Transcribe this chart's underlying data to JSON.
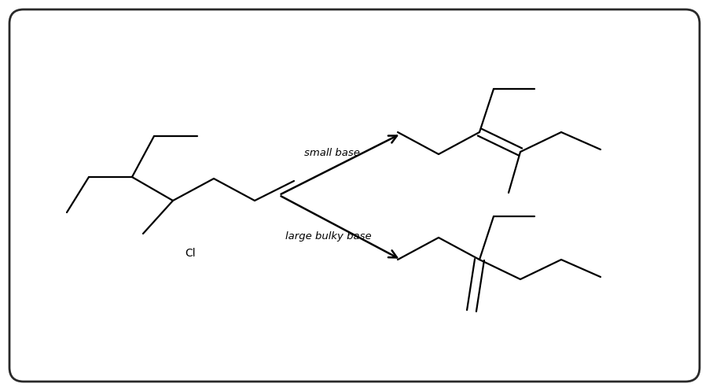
{
  "bg_color": "#ffffff",
  "line_color": "#000000",
  "line_width": 1.6,
  "arrow_color": "#000000",
  "text_color": "#000000",
  "small_base_label": "small base",
  "large_base_label": "large bulky base",
  "label_fontsize": 9.5,
  "cl_label": "Cl",
  "fig_width": 9.02,
  "fig_height": 4.97,
  "dpi": 100
}
